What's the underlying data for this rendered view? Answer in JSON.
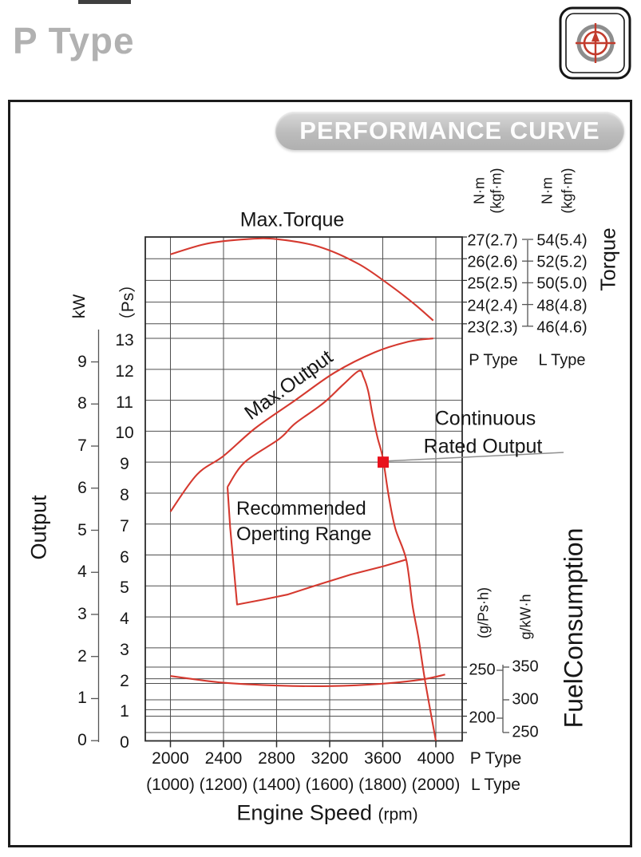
{
  "page": {
    "title": "P Type"
  },
  "panel": {
    "header": "PERFORMANCE CURVE"
  },
  "chart_data": {
    "type": "line",
    "title": "PERFORMANCE CURVE",
    "x_axis": {
      "title": "Engine Speed",
      "unit": "(rpm)",
      "p_row_label": "P Type",
      "l_row_label": "L Type",
      "p_ticks": [
        "2000",
        "2400",
        "2800",
        "3200",
        "3600",
        "4000"
      ],
      "p_tick_values": [
        2000,
        2400,
        2800,
        3200,
        3600,
        4000
      ],
      "l_ticks": [
        "(1000)",
        "(1200)",
        "(1400)",
        "(1600)",
        "(1800)",
        "(2000)"
      ]
    },
    "output_axis": {
      "title": "Output",
      "kw_unit": "kW",
      "ps_unit": "（Ps）",
      "kw_ticks": [
        9,
        8,
        7,
        6,
        5,
        4,
        3,
        2,
        1,
        0
      ],
      "ps_ticks": [
        13,
        12,
        11,
        10,
        9,
        8,
        7,
        6,
        5,
        4,
        3,
        2,
        1,
        0
      ]
    },
    "torque_axis": {
      "title": "Torque",
      "p_unit_line1": "N·m",
      "p_unit_line2": "(kgf·m)",
      "l_unit_line1": "N·m",
      "l_unit_line2": "(kgf·m)",
      "p_col_label": "P Type",
      "l_col_label": "L Type",
      "p_labels": [
        "27(2.7)",
        "26(2.6)",
        "25(2.5)",
        "24(2.4)",
        "23(2.3)"
      ],
      "l_labels": [
        "54(5.4)",
        "52(5.2)",
        "50(5.0)",
        "48(4.8)",
        "46(4.6)"
      ],
      "line_values_nm": [
        27,
        26,
        25,
        24,
        23
      ]
    },
    "fuel_axis": {
      "title": "FuelConsumption",
      "ps_unit": "(g/Ps·h)",
      "kw_unit": "g/kW·h",
      "ps_labels": [
        {
          "text": "250",
          "value": 250
        },
        {
          "text": "200",
          "value": 200
        }
      ],
      "kw_labels": [
        {
          "text": "350",
          "value": 350
        },
        {
          "text": "300",
          "value": 300
        },
        {
          "text": "250",
          "value": 250
        }
      ],
      "grid_values_gkwh": [
        350,
        325,
        300,
        275,
        250
      ]
    },
    "annotations": {
      "max_torque": "Max.Torque",
      "max_output": "Max.Output",
      "continuous_rated_1": "Continuous",
      "continuous_rated_2": "Rated Output",
      "recommended_1": "Recommended",
      "recommended_2": "Operting Range"
    },
    "series": [
      {
        "name": "max-torque-curve",
        "y_unit": "nm",
        "smooth": true,
        "points": [
          [
            2000,
            26.2
          ],
          [
            2280,
            26.7
          ],
          [
            2580,
            26.9
          ],
          [
            2800,
            26.9
          ],
          [
            3120,
            26.55
          ],
          [
            3420,
            25.75
          ],
          [
            3660,
            24.75
          ],
          [
            3840,
            23.9
          ],
          [
            3980,
            23.15
          ]
        ]
      },
      {
        "name": "max-output-curve",
        "y_unit": "ps",
        "smooth": true,
        "points": [
          [
            2000,
            7.4
          ],
          [
            2200,
            8.6
          ],
          [
            2400,
            9.2
          ],
          [
            2640,
            10.1
          ],
          [
            2940,
            11.0
          ],
          [
            3240,
            11.9
          ],
          [
            3540,
            12.55
          ],
          [
            3800,
            12.9
          ],
          [
            3980,
            13.0
          ]
        ]
      },
      {
        "name": "continuous-rated-curve",
        "y_unit": "ps",
        "smooth": true,
        "points": [
          [
            2430,
            8.2
          ],
          [
            2560,
            9.0
          ],
          [
            2820,
            9.75
          ],
          [
            2940,
            10.25
          ],
          [
            3150,
            10.9
          ],
          [
            3300,
            11.5
          ],
          [
            3420,
            11.95
          ],
          [
            3455,
            11.75
          ],
          [
            3490,
            11.3
          ],
          [
            3520,
            10.6
          ],
          [
            3560,
            9.8
          ],
          [
            3600,
            9.15
          ],
          [
            3645,
            7.9
          ],
          [
            3695,
            6.85
          ],
          [
            3777,
            5.85
          ],
          [
            3825,
            4.35
          ],
          [
            3870,
            3.3
          ],
          [
            3920,
            1.9
          ],
          [
            4000,
            0
          ]
        ]
      },
      {
        "name": "recommended-range-boundary",
        "y_unit": "ps",
        "smooth": false,
        "points": [
          [
            2430,
            8.2
          ],
          [
            2450,
            6.9
          ],
          [
            2502,
            4.4
          ],
          [
            2700,
            4.56
          ],
          [
            2880,
            4.72
          ],
          [
            3120,
            5.05
          ],
          [
            3360,
            5.37
          ],
          [
            3600,
            5.63
          ],
          [
            3777,
            5.85
          ]
        ]
      },
      {
        "name": "fuel-consumption-curve",
        "y_unit": "gpsh",
        "smooth": true,
        "points": [
          [
            2000,
            244
          ],
          [
            2400,
            237
          ],
          [
            2820,
            234
          ],
          [
            3200,
            233.5
          ],
          [
            3600,
            236
          ],
          [
            3900,
            240.5
          ],
          [
            4070,
            245.5
          ]
        ]
      }
    ],
    "rated_point": {
      "rpm": 3600,
      "output_ps": 9,
      "output_kw": 6.6,
      "marker_color": "#e8111c"
    },
    "colors": {
      "curve": "#d5392f",
      "grid": "#4f4f4f",
      "border": "#2b2b2b",
      "leader": "#8f8f8f"
    }
  }
}
